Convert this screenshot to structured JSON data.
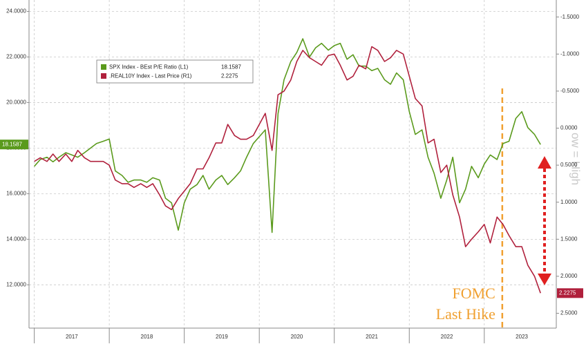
{
  "chart_data": {
    "type": "line",
    "x": [
      2017.0,
      2017.08,
      2017.17,
      2017.25,
      2017.33,
      2017.42,
      2017.5,
      2017.58,
      2017.67,
      2017.75,
      2017.83,
      2017.92,
      2018.0,
      2018.08,
      2018.17,
      2018.25,
      2018.33,
      2018.42,
      2018.5,
      2018.58,
      2018.67,
      2018.75,
      2018.83,
      2018.92,
      2019.0,
      2019.08,
      2019.17,
      2019.25,
      2019.33,
      2019.42,
      2019.5,
      2019.58,
      2019.67,
      2019.75,
      2019.83,
      2019.92,
      2020.0,
      2020.08,
      2020.17,
      2020.25,
      2020.33,
      2020.42,
      2020.5,
      2020.58,
      2020.67,
      2020.75,
      2020.83,
      2020.92,
      2021.0,
      2021.08,
      2021.17,
      2021.25,
      2021.33,
      2021.42,
      2021.5,
      2021.58,
      2021.67,
      2021.75,
      2021.83,
      2021.92,
      2022.0,
      2022.08,
      2022.17,
      2022.25,
      2022.33,
      2022.42,
      2022.5,
      2022.58,
      2022.67,
      2022.75,
      2022.83,
      2022.92,
      2023.0,
      2023.08,
      2023.17,
      2023.25,
      2023.33,
      2023.42,
      2023.5,
      2023.58,
      2023.67,
      2023.75
    ],
    "series": [
      {
        "name": "SPX Index - BEst P/E Ratio (L1)",
        "color": "#5a9a1c",
        "values": [
          17.2,
          17.5,
          17.6,
          17.4,
          17.6,
          17.8,
          17.7,
          17.6,
          17.8,
          18.0,
          18.2,
          18.3,
          18.4,
          17.0,
          16.8,
          16.5,
          16.6,
          16.6,
          16.5,
          16.7,
          16.6,
          15.8,
          15.6,
          14.4,
          15.6,
          16.2,
          16.4,
          16.8,
          16.2,
          16.6,
          16.8,
          16.4,
          16.7,
          17.0,
          17.6,
          18.2,
          18.5,
          18.8,
          14.3,
          19.5,
          21.0,
          21.8,
          22.2,
          22.8,
          22.0,
          22.4,
          22.6,
          22.3,
          22.5,
          22.6,
          21.9,
          22.1,
          21.6,
          21.6,
          21.4,
          21.5,
          21.0,
          20.8,
          21.3,
          21.0,
          19.6,
          18.6,
          18.8,
          17.6,
          16.9,
          15.8,
          16.6,
          17.6,
          15.6,
          16.2,
          17.2,
          16.7,
          17.3,
          17.7,
          17.5,
          18.2,
          18.3,
          19.3,
          19.6,
          18.9,
          18.6,
          18.1587
        ]
      },
      {
        "name": ".REAL10Y Index - Last Price (R1)",
        "color": "#b0203c",
        "axis": "y2",
        "values": [
          0.45,
          0.4,
          0.45,
          0.35,
          0.45,
          0.35,
          0.45,
          0.3,
          0.4,
          0.45,
          0.45,
          0.45,
          0.5,
          0.7,
          0.75,
          0.75,
          0.8,
          0.75,
          0.8,
          0.75,
          0.9,
          1.05,
          1.1,
          0.95,
          0.85,
          0.75,
          0.55,
          0.55,
          0.4,
          0.2,
          0.2,
          -0.05,
          0.1,
          0.15,
          0.15,
          0.1,
          -0.05,
          -0.2,
          0.3,
          -0.45,
          -0.5,
          -0.65,
          -0.9,
          -1.05,
          -0.95,
          -0.9,
          -0.85,
          -0.98,
          -1.0,
          -0.85,
          -0.65,
          -0.7,
          -0.85,
          -0.8,
          -1.1,
          -1.05,
          -0.9,
          -0.95,
          -1.05,
          -1.0,
          -0.7,
          -0.4,
          -0.3,
          0.2,
          0.15,
          0.6,
          0.5,
          0.9,
          1.2,
          1.6,
          1.5,
          1.4,
          1.3,
          1.55,
          1.2,
          1.3,
          1.45,
          1.6,
          1.6,
          1.85,
          2.0,
          2.2275
        ]
      }
    ],
    "xlim": [
      2016.93,
      2023.96
    ],
    "xticks": [
      {
        "value": 2017.5,
        "label": "2017"
      },
      {
        "value": 2018.5,
        "label": "2018"
      },
      {
        "value": 2019.5,
        "label": "2019"
      },
      {
        "value": 2020.5,
        "label": "2020"
      },
      {
        "value": 2021.5,
        "label": "2021"
      },
      {
        "value": 2022.5,
        "label": "2022"
      },
      {
        "value": 2023.5,
        "label": "2023"
      }
    ],
    "ylim": [
      10.1,
      24.5
    ],
    "yticks": [
      {
        "value": 12,
        "label": "12.0000"
      },
      {
        "value": 14,
        "label": "14.0000"
      },
      {
        "value": 16,
        "label": "16.0000"
      },
      {
        "value": 18,
        "label": "18.0000"
      },
      {
        "value": 20,
        "label": "20.0000"
      },
      {
        "value": 22,
        "label": "22.0000"
      },
      {
        "value": 24,
        "label": "24.0000"
      }
    ],
    "y2lim": [
      -1.73,
      2.7
    ],
    "y2_inverted": true,
    "y2ticks": [
      {
        "value": -1.5,
        "label": "-1.5000"
      },
      {
        "value": -1.0,
        "label": "-1.0000"
      },
      {
        "value": -0.5,
        "label": "-0.5000"
      },
      {
        "value": 0,
        "label": "0.0000"
      },
      {
        "value": 0.5,
        "label": "0.5000"
      },
      {
        "value": 1.0,
        "label": "1.0000"
      },
      {
        "value": 1.5,
        "label": "1.5000"
      },
      {
        "value": 2.0,
        "label": "2.0000"
      },
      {
        "value": 2.5,
        "label": "2.5000"
      }
    ],
    "grid": true,
    "legend": "upper left",
    "annotation": {
      "lines": [
        "FOMC",
        "Last Hike"
      ],
      "x": 2023.24,
      "color": "#f0a030"
    },
    "side_note": "ow = High"
  }
}
